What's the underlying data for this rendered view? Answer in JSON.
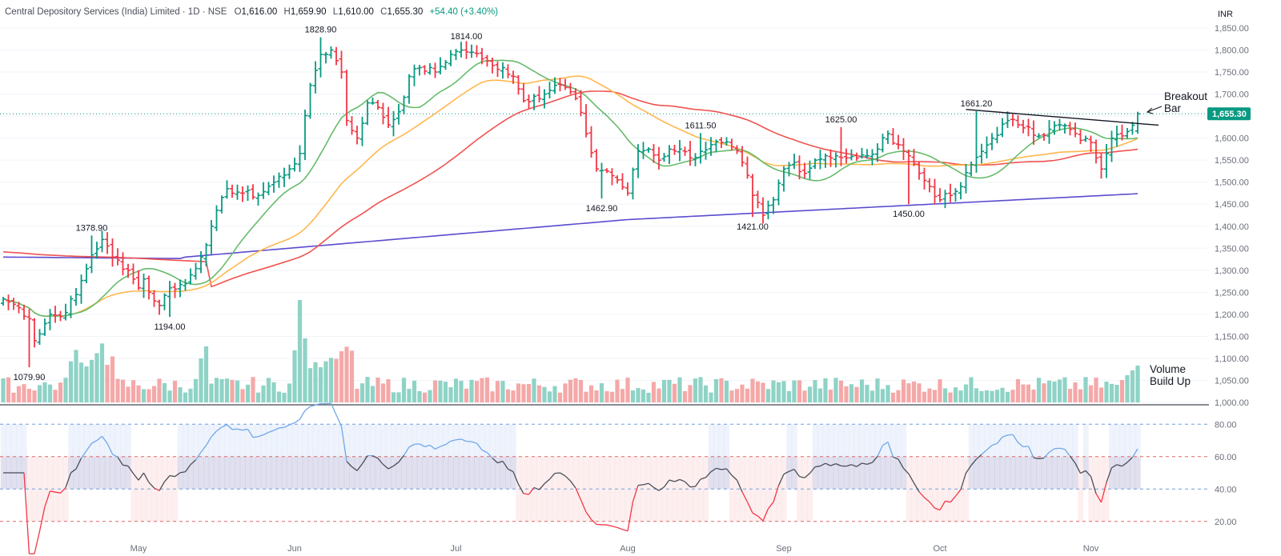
{
  "chart_data": {
    "type": "ohlc",
    "title": {
      "symbol": "Central Depository Services (India) Limited · 1D · NSE",
      "open_label": "O",
      "open": "1,616.00",
      "high_label": "H",
      "high": "1,659.90",
      "low_label": "L",
      "low": "1,610.00",
      "close_label": "C",
      "close": "1,655.30",
      "change": "+54.40 (+3.40%)"
    },
    "currency": "INR",
    "last_price": 1655.3,
    "last_price_label": "1,655.30",
    "price_axis": {
      "min": 1000,
      "max": 1850,
      "ticks": [
        1000,
        1050,
        1100,
        1150,
        1200,
        1250,
        1300,
        1350,
        1400,
        1450,
        1500,
        1550,
        1600,
        1650,
        1700,
        1750,
        1800,
        1850
      ],
      "tick_labels": [
        "1,000.00",
        "1,050.00",
        "1,100.00",
        "1,150.00",
        "1,200.00",
        "1,250.00",
        "1,300.00",
        "1,350.00",
        "1,400.00",
        "1,450.00",
        "1,500.00",
        "1,550.00",
        "1,600.00",
        "1,650.00",
        "1,700.00",
        "1,750.00",
        "1,800.00",
        "1,850.00"
      ]
    },
    "rsi_axis": {
      "min": 10,
      "max": 90,
      "ticks": [
        20,
        40,
        60,
        80
      ],
      "tick_labels": [
        "20.00",
        "40.00",
        "60.00",
        "80.00"
      ]
    },
    "months": [
      {
        "label": "May",
        "bar": 26
      },
      {
        "label": "Jun",
        "bar": 56
      },
      {
        "label": "Jul",
        "bar": 87
      },
      {
        "label": "Aug",
        "bar": 120
      },
      {
        "label": "Sep",
        "bar": 150
      },
      {
        "label": "Oct",
        "bar": 180
      },
      {
        "label": "Nov",
        "bar": 209
      }
    ],
    "close_anchors": [
      [
        0,
        1235
      ],
      [
        3,
        1215
      ],
      [
        5,
        1190
      ],
      [
        6,
        1140
      ],
      [
        9,
        1200
      ],
      [
        11,
        1195
      ],
      [
        14,
        1245
      ],
      [
        17,
        1335
      ],
      [
        19,
        1370
      ],
      [
        21,
        1330
      ],
      [
        24,
        1300
      ],
      [
        26,
        1260
      ],
      [
        27,
        1280
      ],
      [
        28,
        1250
      ],
      [
        30,
        1220
      ],
      [
        32,
        1260
      ],
      [
        35,
        1270
      ],
      [
        38,
        1330
      ],
      [
        40,
        1400
      ],
      [
        43,
        1485
      ],
      [
        46,
        1475
      ],
      [
        49,
        1470
      ],
      [
        52,
        1500
      ],
      [
        55,
        1530
      ],
      [
        57,
        1565
      ],
      [
        59,
        1720
      ],
      [
        61,
        1790
      ],
      [
        63,
        1800
      ],
      [
        65,
        1750
      ],
      [
        66,
        1640
      ],
      [
        68,
        1600
      ],
      [
        70,
        1680
      ],
      [
        72,
        1670
      ],
      [
        74,
        1630
      ],
      [
        76,
        1660
      ],
      [
        78,
        1740
      ],
      [
        80,
        1760
      ],
      [
        83,
        1750
      ],
      [
        86,
        1790
      ],
      [
        88,
        1800
      ],
      [
        90,
        1795
      ],
      [
        92,
        1780
      ],
      [
        94,
        1765
      ],
      [
        96,
        1760
      ],
      [
        98,
        1740
      ],
      [
        100,
        1685
      ],
      [
        102,
        1695
      ],
      [
        104,
        1700
      ],
      [
        106,
        1720
      ],
      [
        108,
        1715
      ],
      [
        110,
        1690
      ],
      [
        112,
        1610
      ],
      [
        114,
        1530
      ],
      [
        116,
        1525
      ],
      [
        118,
        1505
      ],
      [
        120,
        1475
      ],
      [
        122,
        1570
      ],
      [
        124,
        1575
      ],
      [
        126,
        1550
      ],
      [
        128,
        1575
      ],
      [
        130,
        1575
      ],
      [
        132,
        1555
      ],
      [
        134,
        1570
      ],
      [
        136,
        1585
      ],
      [
        138,
        1590
      ],
      [
        140,
        1580
      ],
      [
        142,
        1545
      ],
      [
        144,
        1470
      ],
      [
        146,
        1425
      ],
      [
        148,
        1460
      ],
      [
        150,
        1530
      ],
      [
        152,
        1545
      ],
      [
        154,
        1520
      ],
      [
        156,
        1550
      ],
      [
        158,
        1560
      ],
      [
        160,
        1560
      ],
      [
        162,
        1555
      ],
      [
        164,
        1555
      ],
      [
        166,
        1560
      ],
      [
        168,
        1575
      ],
      [
        170,
        1610
      ],
      [
        172,
        1585
      ],
      [
        174,
        1560
      ],
      [
        176,
        1520
      ],
      [
        178,
        1490
      ],
      [
        180,
        1460
      ],
      [
        182,
        1470
      ],
      [
        184,
        1490
      ],
      [
        186,
        1540
      ],
      [
        188,
        1570
      ],
      [
        190,
        1600
      ],
      [
        193,
        1640
      ],
      [
        195,
        1630
      ],
      [
        197,
        1625
      ],
      [
        199,
        1605
      ],
      [
        201,
        1620
      ],
      [
        203,
        1630
      ],
      [
        205,
        1620
      ],
      [
        207,
        1595
      ],
      [
        209,
        1590
      ],
      [
        211,
        1530
      ],
      [
        212,
        1565
      ],
      [
        213,
        1600
      ],
      [
        215,
        1605
      ],
      [
        216,
        1615
      ],
      [
        218,
        1655.3
      ]
    ],
    "labels": [
      {
        "text": "1828.90",
        "bar": 61,
        "price": 1828.9,
        "pos": "above"
      },
      {
        "text": "1814.00",
        "bar": 89,
        "price": 1814.0,
        "pos": "above"
      },
      {
        "text": "1378.90",
        "bar": 17,
        "price": 1378.9,
        "pos": "above"
      },
      {
        "text": "1194.00",
        "bar": 32,
        "price": 1194.0,
        "pos": "below"
      },
      {
        "text": "1079.90",
        "bar": 5,
        "price": 1079.9,
        "pos": "below"
      },
      {
        "text": "1611.50",
        "bar": 134,
        "price": 1611.5,
        "pos": "above"
      },
      {
        "text": "1462.90",
        "bar": 115,
        "price": 1462.9,
        "pos": "below"
      },
      {
        "text": "1421.00",
        "bar": 144,
        "price": 1421.0,
        "pos": "below"
      },
      {
        "text": "1625.00",
        "bar": 161,
        "price": 1625.0,
        "pos": "above"
      },
      {
        "text": "1450.00",
        "bar": 174,
        "price": 1450.0,
        "pos": "below"
      },
      {
        "text": "1661.20",
        "bar": 187,
        "price": 1661.2,
        "pos": "above"
      }
    ],
    "annotations": [
      {
        "text": "Breakout",
        "line2": "Bar",
        "target_bar": 218,
        "target_price": 1655
      },
      {
        "text": "Volume",
        "line2": "Build Up"
      }
    ],
    "trendline": {
      "from_bar": 185,
      "from_price": 1665,
      "to_bar": 218,
      "to_price": 1633
    },
    "moving_averages": [
      {
        "name": "MA20",
        "color": "#66bb6a"
      },
      {
        "name": "MA50",
        "color": "#ffb74d"
      },
      {
        "name": "MA100",
        "color": "#ef5350"
      },
      {
        "name": "MA200",
        "color": "#5b4ccf"
      }
    ],
    "colors": {
      "up": "#089981",
      "down": "#f23645",
      "vol_up": "#8ed3c6",
      "vol_down": "#f5a8a8",
      "rsi_line": "#4a4e59",
      "rsi_high_line": "#6fa8e8",
      "rsi_low_line": "#f23645",
      "last_price_tag": "#089981"
    }
  }
}
